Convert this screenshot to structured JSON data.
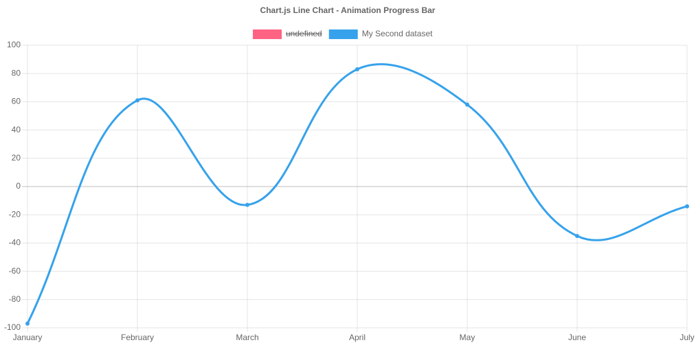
{
  "chart_data": {
    "type": "line",
    "title": "Chart.js Line Chart - Animation Progress Bar",
    "categories": [
      "January",
      "February",
      "March",
      "April",
      "May",
      "June",
      "July"
    ],
    "series": [
      {
        "name": "undefined",
        "color": "#ff6384",
        "hidden": true,
        "values": [
          null,
          null,
          null,
          null,
          null,
          null,
          null
        ]
      },
      {
        "name": "My Second dataset",
        "color": "#36a2eb",
        "values": [
          -97,
          61,
          -13,
          83,
          58,
          -35,
          -14
        ]
      }
    ],
    "ylim": [
      -100,
      100
    ],
    "yticks": [
      -100,
      -80,
      -60,
      -40,
      -20,
      0,
      20,
      40,
      60,
      80,
      100
    ],
    "grid": true,
    "legend": "top",
    "curve_tension": 0.4
  }
}
